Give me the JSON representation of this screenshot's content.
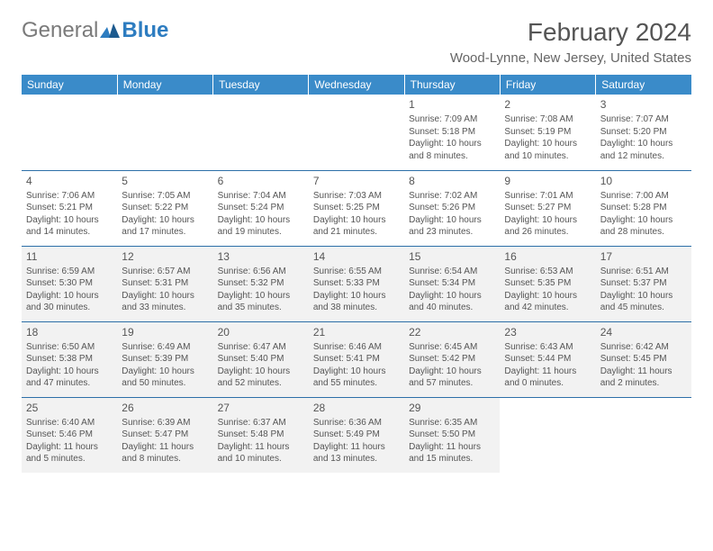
{
  "logo": {
    "general": "General",
    "blue": "Blue"
  },
  "title": "February 2024",
  "location": "Wood-Lynne, New Jersey, United States",
  "colors": {
    "header_bg": "#3a8bc9",
    "header_text": "#ffffff",
    "border": "#2d6fa8",
    "shaded_bg": "#f2f2f2",
    "text": "#555555"
  },
  "weekdays": [
    "Sunday",
    "Monday",
    "Tuesday",
    "Wednesday",
    "Thursday",
    "Friday",
    "Saturday"
  ],
  "weeks": [
    [
      {
        "day": "",
        "shaded": false
      },
      {
        "day": "",
        "shaded": false
      },
      {
        "day": "",
        "shaded": false
      },
      {
        "day": "",
        "shaded": false
      },
      {
        "day": "1",
        "sunrise": "Sunrise: 7:09 AM",
        "sunset": "Sunset: 5:18 PM",
        "daylight": "Daylight: 10 hours and 8 minutes.",
        "shaded": false
      },
      {
        "day": "2",
        "sunrise": "Sunrise: 7:08 AM",
        "sunset": "Sunset: 5:19 PM",
        "daylight": "Daylight: 10 hours and 10 minutes.",
        "shaded": false
      },
      {
        "day": "3",
        "sunrise": "Sunrise: 7:07 AM",
        "sunset": "Sunset: 5:20 PM",
        "daylight": "Daylight: 10 hours and 12 minutes.",
        "shaded": false
      }
    ],
    [
      {
        "day": "4",
        "sunrise": "Sunrise: 7:06 AM",
        "sunset": "Sunset: 5:21 PM",
        "daylight": "Daylight: 10 hours and 14 minutes.",
        "shaded": false
      },
      {
        "day": "5",
        "sunrise": "Sunrise: 7:05 AM",
        "sunset": "Sunset: 5:22 PM",
        "daylight": "Daylight: 10 hours and 17 minutes.",
        "shaded": false
      },
      {
        "day": "6",
        "sunrise": "Sunrise: 7:04 AM",
        "sunset": "Sunset: 5:24 PM",
        "daylight": "Daylight: 10 hours and 19 minutes.",
        "shaded": false
      },
      {
        "day": "7",
        "sunrise": "Sunrise: 7:03 AM",
        "sunset": "Sunset: 5:25 PM",
        "daylight": "Daylight: 10 hours and 21 minutes.",
        "shaded": false
      },
      {
        "day": "8",
        "sunrise": "Sunrise: 7:02 AM",
        "sunset": "Sunset: 5:26 PM",
        "daylight": "Daylight: 10 hours and 23 minutes.",
        "shaded": false
      },
      {
        "day": "9",
        "sunrise": "Sunrise: 7:01 AM",
        "sunset": "Sunset: 5:27 PM",
        "daylight": "Daylight: 10 hours and 26 minutes.",
        "shaded": false
      },
      {
        "day": "10",
        "sunrise": "Sunrise: 7:00 AM",
        "sunset": "Sunset: 5:28 PM",
        "daylight": "Daylight: 10 hours and 28 minutes.",
        "shaded": false
      }
    ],
    [
      {
        "day": "11",
        "sunrise": "Sunrise: 6:59 AM",
        "sunset": "Sunset: 5:30 PM",
        "daylight": "Daylight: 10 hours and 30 minutes.",
        "shaded": true
      },
      {
        "day": "12",
        "sunrise": "Sunrise: 6:57 AM",
        "sunset": "Sunset: 5:31 PM",
        "daylight": "Daylight: 10 hours and 33 minutes.",
        "shaded": true
      },
      {
        "day": "13",
        "sunrise": "Sunrise: 6:56 AM",
        "sunset": "Sunset: 5:32 PM",
        "daylight": "Daylight: 10 hours and 35 minutes.",
        "shaded": true
      },
      {
        "day": "14",
        "sunrise": "Sunrise: 6:55 AM",
        "sunset": "Sunset: 5:33 PM",
        "daylight": "Daylight: 10 hours and 38 minutes.",
        "shaded": true
      },
      {
        "day": "15",
        "sunrise": "Sunrise: 6:54 AM",
        "sunset": "Sunset: 5:34 PM",
        "daylight": "Daylight: 10 hours and 40 minutes.",
        "shaded": true
      },
      {
        "day": "16",
        "sunrise": "Sunrise: 6:53 AM",
        "sunset": "Sunset: 5:35 PM",
        "daylight": "Daylight: 10 hours and 42 minutes.",
        "shaded": true
      },
      {
        "day": "17",
        "sunrise": "Sunrise: 6:51 AM",
        "sunset": "Sunset: 5:37 PM",
        "daylight": "Daylight: 10 hours and 45 minutes.",
        "shaded": true
      }
    ],
    [
      {
        "day": "18",
        "sunrise": "Sunrise: 6:50 AM",
        "sunset": "Sunset: 5:38 PM",
        "daylight": "Daylight: 10 hours and 47 minutes.",
        "shaded": true
      },
      {
        "day": "19",
        "sunrise": "Sunrise: 6:49 AM",
        "sunset": "Sunset: 5:39 PM",
        "daylight": "Daylight: 10 hours and 50 minutes.",
        "shaded": true
      },
      {
        "day": "20",
        "sunrise": "Sunrise: 6:47 AM",
        "sunset": "Sunset: 5:40 PM",
        "daylight": "Daylight: 10 hours and 52 minutes.",
        "shaded": true
      },
      {
        "day": "21",
        "sunrise": "Sunrise: 6:46 AM",
        "sunset": "Sunset: 5:41 PM",
        "daylight": "Daylight: 10 hours and 55 minutes.",
        "shaded": true
      },
      {
        "day": "22",
        "sunrise": "Sunrise: 6:45 AM",
        "sunset": "Sunset: 5:42 PM",
        "daylight": "Daylight: 10 hours and 57 minutes.",
        "shaded": true
      },
      {
        "day": "23",
        "sunrise": "Sunrise: 6:43 AM",
        "sunset": "Sunset: 5:44 PM",
        "daylight": "Daylight: 11 hours and 0 minutes.",
        "shaded": true
      },
      {
        "day": "24",
        "sunrise": "Sunrise: 6:42 AM",
        "sunset": "Sunset: 5:45 PM",
        "daylight": "Daylight: 11 hours and 2 minutes.",
        "shaded": true
      }
    ],
    [
      {
        "day": "25",
        "sunrise": "Sunrise: 6:40 AM",
        "sunset": "Sunset: 5:46 PM",
        "daylight": "Daylight: 11 hours and 5 minutes.",
        "shaded": true
      },
      {
        "day": "26",
        "sunrise": "Sunrise: 6:39 AM",
        "sunset": "Sunset: 5:47 PM",
        "daylight": "Daylight: 11 hours and 8 minutes.",
        "shaded": true
      },
      {
        "day": "27",
        "sunrise": "Sunrise: 6:37 AM",
        "sunset": "Sunset: 5:48 PM",
        "daylight": "Daylight: 11 hours and 10 minutes.",
        "shaded": true
      },
      {
        "day": "28",
        "sunrise": "Sunrise: 6:36 AM",
        "sunset": "Sunset: 5:49 PM",
        "daylight": "Daylight: 11 hours and 13 minutes.",
        "shaded": true
      },
      {
        "day": "29",
        "sunrise": "Sunrise: 6:35 AM",
        "sunset": "Sunset: 5:50 PM",
        "daylight": "Daylight: 11 hours and 15 minutes.",
        "shaded": true
      },
      {
        "day": "",
        "shaded": false
      },
      {
        "day": "",
        "shaded": false
      }
    ]
  ]
}
